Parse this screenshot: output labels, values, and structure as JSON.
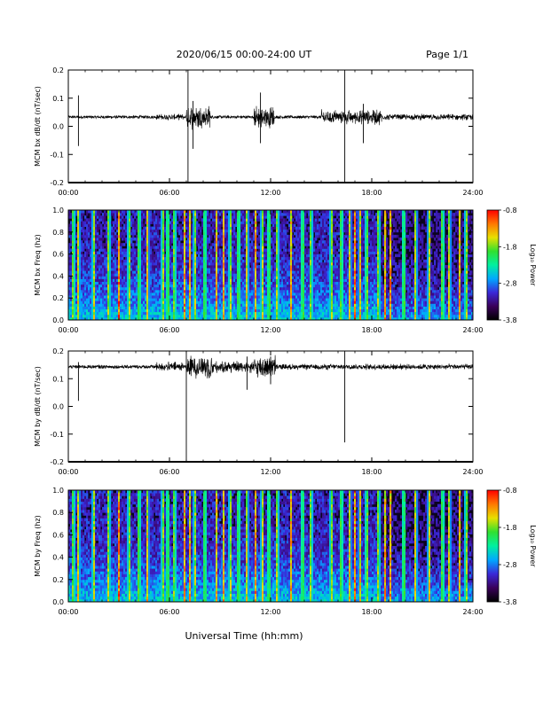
{
  "header": {
    "title": "2020/06/15  00:00-24:00 UT",
    "page": "Page 1/1"
  },
  "footer": {
    "xlabel": "Universal Time (hh:mm)"
  },
  "colors": {
    "trace": "#000000",
    "background": "#ffffff",
    "spectrogram_bg": "#0b0420"
  },
  "colorbar": {
    "label": "Log₁₀ Power",
    "ticks": [
      "-0.8",
      "-1.8",
      "-2.8",
      "-3.8"
    ],
    "range": [
      -3.8,
      -0.8
    ],
    "colors": [
      "#000000",
      "#3a005a",
      "#3a28d8",
      "#00a8ff",
      "#00f0a0",
      "#30e030",
      "#e8e000",
      "#ff7800",
      "#ff0000"
    ]
  },
  "chart_data": [
    {
      "type": "line",
      "ylabel": "MCM bx dB/dt (nT/sec)",
      "xlim": [
        0,
        24
      ],
      "ylim": [
        -0.2,
        0.2
      ],
      "xticks": [
        "00:00",
        "06:00",
        "12:00",
        "18:00",
        "24:00"
      ],
      "yticks": [
        "0.2",
        "0.1",
        "0.0",
        "-0.1",
        "-0.2"
      ],
      "baseline": 0.033,
      "noise_amplitude": 0.005,
      "spikes": [
        {
          "x": 7.1,
          "ymax": 0.2,
          "ymin": -0.2
        },
        {
          "x": 16.4,
          "ymax": 0.2,
          "ymin": -0.2
        },
        {
          "x": 0.6,
          "ymax": 0.11,
          "ymin": -0.07
        },
        {
          "x": 7.4,
          "ymax": 0.09,
          "ymin": -0.08
        },
        {
          "x": 11.4,
          "ymax": 0.12,
          "ymin": -0.06
        },
        {
          "x": 17.5,
          "ymax": 0.08,
          "ymin": -0.06
        }
      ],
      "active_intervals": [
        {
          "start": 5.2,
          "end": 6.8,
          "amplitude": 0.012
        },
        {
          "start": 7.0,
          "end": 8.4,
          "amplitude": 0.05
        },
        {
          "start": 11.0,
          "end": 12.2,
          "amplitude": 0.045
        },
        {
          "start": 15.0,
          "end": 18.6,
          "amplitude": 0.03
        },
        {
          "start": 18.6,
          "end": 24.0,
          "amplitude": 0.012
        }
      ]
    },
    {
      "type": "heatmap",
      "ylabel": "MCM bx Freq (hz)",
      "xlim": [
        0,
        24
      ],
      "ylim": [
        0,
        1.0
      ],
      "xticks": [
        "00:00",
        "06:00",
        "12:00",
        "18:00",
        "24:00"
      ],
      "yticks": [
        "1.0",
        "0.8",
        "0.6",
        "0.4",
        "0.2",
        "0.0"
      ],
      "z_range": [
        -3.8,
        -0.8
      ],
      "bright_columns": [
        0.3,
        0.6,
        1.5,
        2.4,
        3.0,
        3.6,
        4.2,
        4.7,
        5.6,
        5.9,
        6.3,
        6.9,
        7.2,
        7.5,
        8.1,
        8.8,
        9.2,
        9.6,
        10.1,
        10.6,
        11.1,
        11.5,
        11.9,
        12.4,
        13.2,
        13.9,
        14.4,
        15.6,
        16.2,
        16.7,
        17.0,
        17.3,
        17.7,
        18.4,
        18.8,
        19.1,
        19.9,
        20.6,
        21.4,
        22.2,
        22.6,
        23.2,
        23.6
      ]
    },
    {
      "type": "line",
      "ylabel": "MCM by dB/dt (nT/sec)",
      "xlim": [
        0,
        24
      ],
      "ylim": [
        -0.2,
        0.2
      ],
      "xticks": [
        "00:00",
        "06:00",
        "12:00",
        "18:00",
        "24:00"
      ],
      "yticks": [
        "0.2",
        "0.1",
        "0.0",
        "-0.1",
        "-0.2"
      ],
      "baseline": 0.143,
      "noise_amplitude": 0.006,
      "spikes": [
        {
          "x": 7.0,
          "ymax": 0.2,
          "ymin": -0.2
        },
        {
          "x": 16.4,
          "ymax": 0.2,
          "ymin": -0.13
        },
        {
          "x": 0.6,
          "ymax": 0.16,
          "ymin": 0.02
        },
        {
          "x": 10.6,
          "ymax": 0.18,
          "ymin": 0.06
        },
        {
          "x": 12.0,
          "ymax": 0.18,
          "ymin": 0.08
        }
      ],
      "active_intervals": [
        {
          "start": 5.2,
          "end": 6.8,
          "amplitude": 0.02
        },
        {
          "start": 7.0,
          "end": 8.6,
          "amplitude": 0.05
        },
        {
          "start": 8.6,
          "end": 11.0,
          "amplitude": 0.025
        },
        {
          "start": 11.0,
          "end": 12.3,
          "amplitude": 0.05
        },
        {
          "start": 12.3,
          "end": 24.0,
          "amplitude": 0.012
        }
      ]
    },
    {
      "type": "heatmap",
      "ylabel": "MCM by Freq (hz)",
      "xlim": [
        0,
        24
      ],
      "ylim": [
        0,
        1.0
      ],
      "xticks": [
        "00:00",
        "06:00",
        "12:00",
        "18:00",
        "24:00"
      ],
      "yticks": [
        "1.0",
        "0.8",
        "0.6",
        "0.4",
        "0.2",
        "0.0"
      ],
      "z_range": [
        -3.8,
        -0.8
      ],
      "bright_columns": [
        0.3,
        0.6,
        1.5,
        2.4,
        3.0,
        3.6,
        4.2,
        4.7,
        5.6,
        5.9,
        6.3,
        6.9,
        7.2,
        7.5,
        8.1,
        8.8,
        9.2,
        9.6,
        10.1,
        10.6,
        11.1,
        11.5,
        11.9,
        12.4,
        13.2,
        13.9,
        14.4,
        15.6,
        16.2,
        16.7,
        17.0,
        17.3,
        17.7,
        18.4,
        18.8,
        19.1,
        19.9,
        20.6,
        21.4,
        22.2,
        22.6,
        23.2,
        23.6
      ]
    }
  ]
}
